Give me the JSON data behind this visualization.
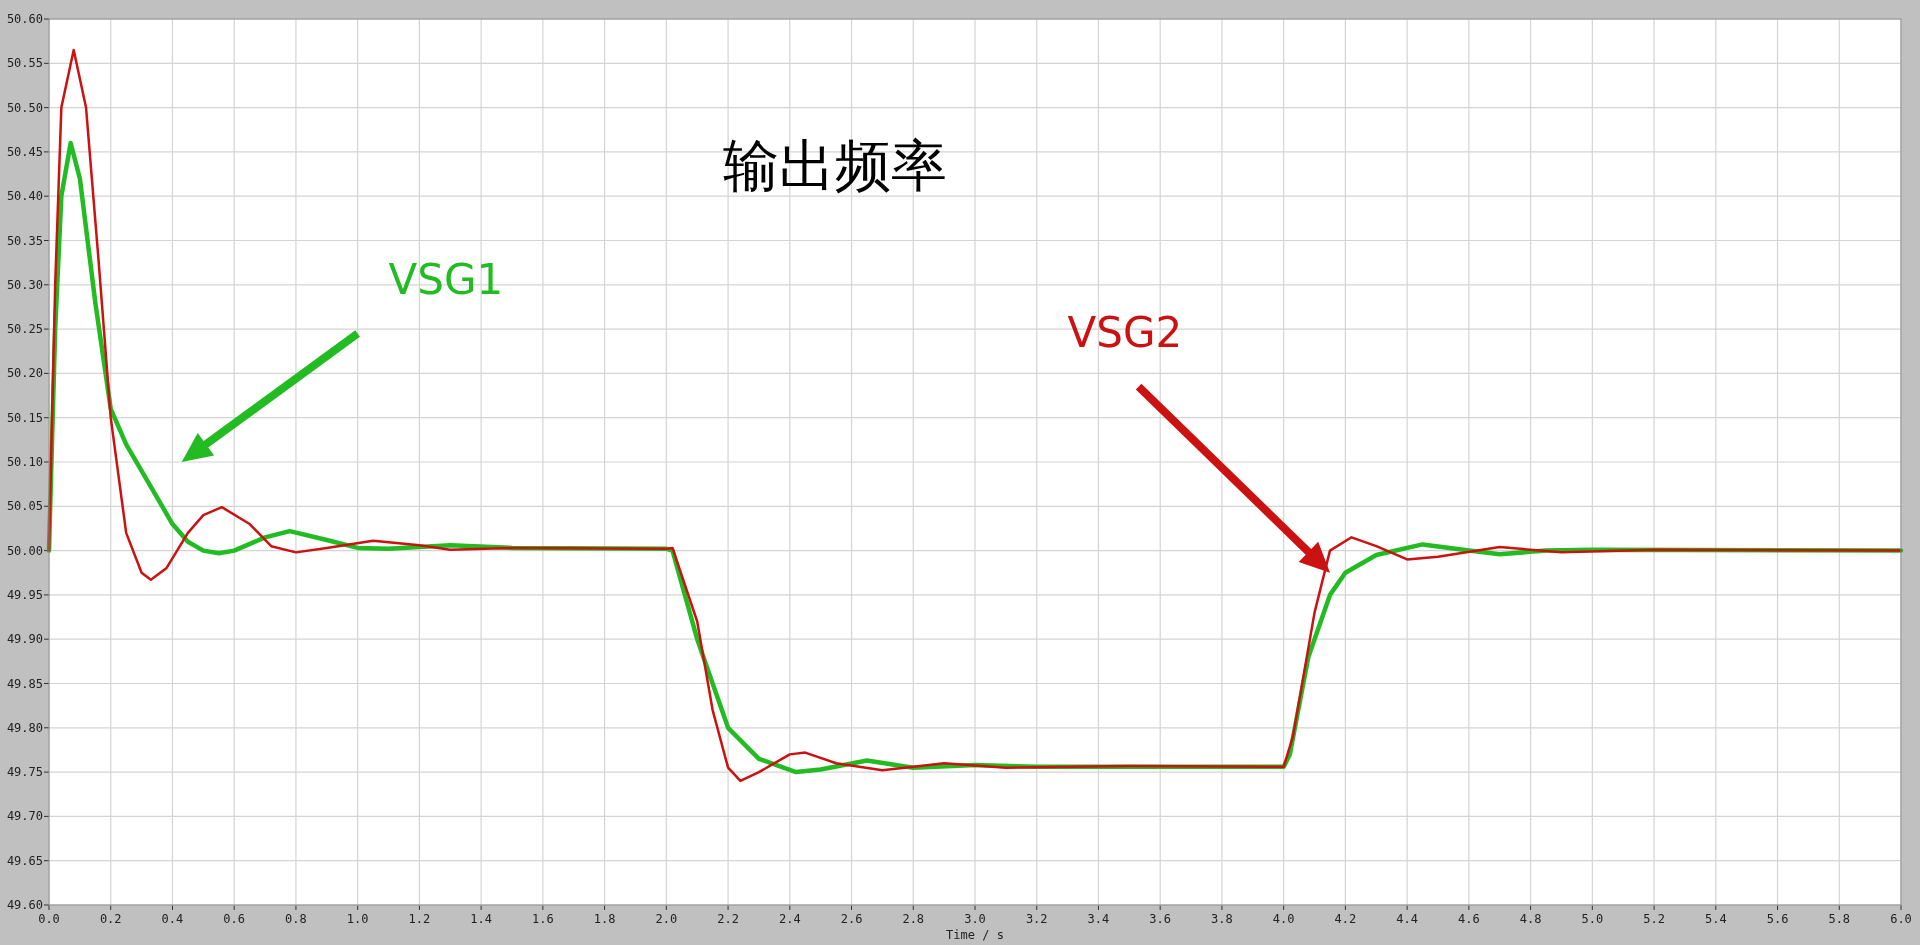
{
  "chart_data": {
    "type": "line",
    "title": "输出频率",
    "xlabel": "Time / s",
    "xlim": [
      0,
      6
    ],
    "ylim": [
      49.6,
      50.6
    ],
    "xticks": [
      {
        "value": 0,
        "label": "0.0"
      },
      {
        "value": 0.2,
        "label": "0.2"
      },
      {
        "value": 0.4,
        "label": "0.4"
      },
      {
        "value": 0.6,
        "label": "0.6"
      },
      {
        "value": 0.8,
        "label": "0.8"
      },
      {
        "value": 1,
        "label": "1.0"
      },
      {
        "value": 1.2,
        "label": "1.2"
      },
      {
        "value": 1.4,
        "label": "1.4"
      },
      {
        "value": 1.6,
        "label": "1.6"
      },
      {
        "value": 1.8,
        "label": "1.8"
      },
      {
        "value": 2,
        "label": "2.0"
      },
      {
        "value": 2.2,
        "label": "2.2"
      },
      {
        "value": 2.4,
        "label": "2.4"
      },
      {
        "value": 2.6,
        "label": "2.6"
      },
      {
        "value": 2.8,
        "label": "2.8"
      },
      {
        "value": 3,
        "label": "3.0"
      },
      {
        "value": 3.2,
        "label": "3.2"
      },
      {
        "value": 3.4,
        "label": "3.4"
      },
      {
        "value": 3.6,
        "label": "3.6"
      },
      {
        "value": 3.8,
        "label": "3.8"
      },
      {
        "value": 4,
        "label": "4.0"
      },
      {
        "value": 4.2,
        "label": "4.2"
      },
      {
        "value": 4.4,
        "label": "4.4"
      },
      {
        "value": 4.6,
        "label": "4.6"
      },
      {
        "value": 4.8,
        "label": "4.8"
      },
      {
        "value": 5,
        "label": "5.0"
      },
      {
        "value": 5.2,
        "label": "5.2"
      },
      {
        "value": 5.4,
        "label": "5.4"
      },
      {
        "value": 5.6,
        "label": "5.6"
      },
      {
        "value": 5.8,
        "label": "5.8"
      },
      {
        "value": 6,
        "label": "6.0"
      }
    ],
    "yticks": [
      {
        "value": 49.6,
        "label": "49.60"
      },
      {
        "value": 49.65,
        "label": "49.65"
      },
      {
        "value": 49.7,
        "label": "49.70"
      },
      {
        "value": 49.75,
        "label": "49.75"
      },
      {
        "value": 49.8,
        "label": "49.80"
      },
      {
        "value": 49.85,
        "label": "49.85"
      },
      {
        "value": 49.9,
        "label": "49.90"
      },
      {
        "value": 49.95,
        "label": "49.95"
      },
      {
        "value": 50,
        "label": "50.00"
      },
      {
        "value": 50.05,
        "label": "50.05"
      },
      {
        "value": 50.1,
        "label": "50.10"
      },
      {
        "value": 50.15,
        "label": "50.15"
      },
      {
        "value": 50.2,
        "label": "50.20"
      },
      {
        "value": 50.25,
        "label": "50.25"
      },
      {
        "value": 50.3,
        "label": "50.30"
      },
      {
        "value": 50.35,
        "label": "50.35"
      },
      {
        "value": 50.4,
        "label": "50.40"
      },
      {
        "value": 50.45,
        "label": "50.45"
      },
      {
        "value": 50.5,
        "label": "50.50"
      },
      {
        "value": 50.55,
        "label": "50.55"
      },
      {
        "value": 50.6,
        "label": "50.60"
      }
    ],
    "grid": true,
    "legend": false,
    "marker": "none",
    "line_style": "solid",
    "series": [
      {
        "name": "VSG1",
        "color": "#22bb22",
        "x": [
          0,
          0.02,
          0.04,
          0.07,
          0.1,
          0.15,
          0.2,
          0.25,
          0.3,
          0.35,
          0.4,
          0.45,
          0.5,
          0.55,
          0.6,
          0.7,
          0.78,
          0.9,
          1.0,
          1.1,
          1.3,
          1.5,
          2.0,
          2.02,
          2.1,
          2.15,
          2.2,
          2.3,
          2.42,
          2.5,
          2.65,
          2.8,
          3.0,
          3.2,
          4.0,
          4.02,
          4.08,
          4.15,
          4.2,
          4.3,
          4.45,
          4.6,
          4.7,
          4.85,
          5.0,
          6.0
        ],
        "values": [
          50.0,
          50.25,
          50.4,
          50.46,
          50.42,
          50.28,
          50.16,
          50.12,
          50.09,
          50.06,
          50.03,
          50.01,
          50.0,
          49.997,
          50.0,
          50.015,
          50.022,
          50.012,
          50.003,
          50.002,
          50.006,
          50.003,
          50.002,
          50.0,
          49.9,
          49.85,
          49.8,
          49.765,
          49.75,
          49.753,
          49.763,
          49.755,
          49.758,
          49.756,
          49.756,
          49.77,
          49.88,
          49.95,
          49.975,
          49.995,
          50.007,
          50.0,
          49.996,
          50.0,
          50.001,
          50.0
        ]
      },
      {
        "name": "VSG2",
        "color": "#cc1111",
        "x": [
          0,
          0.02,
          0.04,
          0.08,
          0.12,
          0.16,
          0.2,
          0.25,
          0.3,
          0.33,
          0.38,
          0.45,
          0.5,
          0.56,
          0.65,
          0.72,
          0.8,
          0.9,
          1.05,
          1.2,
          1.3,
          1.5,
          2.0,
          2.02,
          2.1,
          2.15,
          2.2,
          2.24,
          2.3,
          2.4,
          2.45,
          2.55,
          2.7,
          2.9,
          3.1,
          3.5,
          4.0,
          4.03,
          4.1,
          4.15,
          4.22,
          4.3,
          4.4,
          4.5,
          4.7,
          4.9,
          5.2,
          6.0
        ],
        "values": [
          50.0,
          50.3,
          50.5,
          50.565,
          50.5,
          50.33,
          50.15,
          50.02,
          49.975,
          49.967,
          49.98,
          50.02,
          50.04,
          50.049,
          50.03,
          50.005,
          49.998,
          50.003,
          50.011,
          50.006,
          50.001,
          50.003,
          50.002,
          50.003,
          49.92,
          49.82,
          49.755,
          49.74,
          49.75,
          49.77,
          49.772,
          49.76,
          49.752,
          49.76,
          49.755,
          49.757,
          49.756,
          49.79,
          49.93,
          50.0,
          50.015,
          50.005,
          49.99,
          49.993,
          50.004,
          49.998,
          50.001,
          50.0
        ]
      }
    ]
  }
}
